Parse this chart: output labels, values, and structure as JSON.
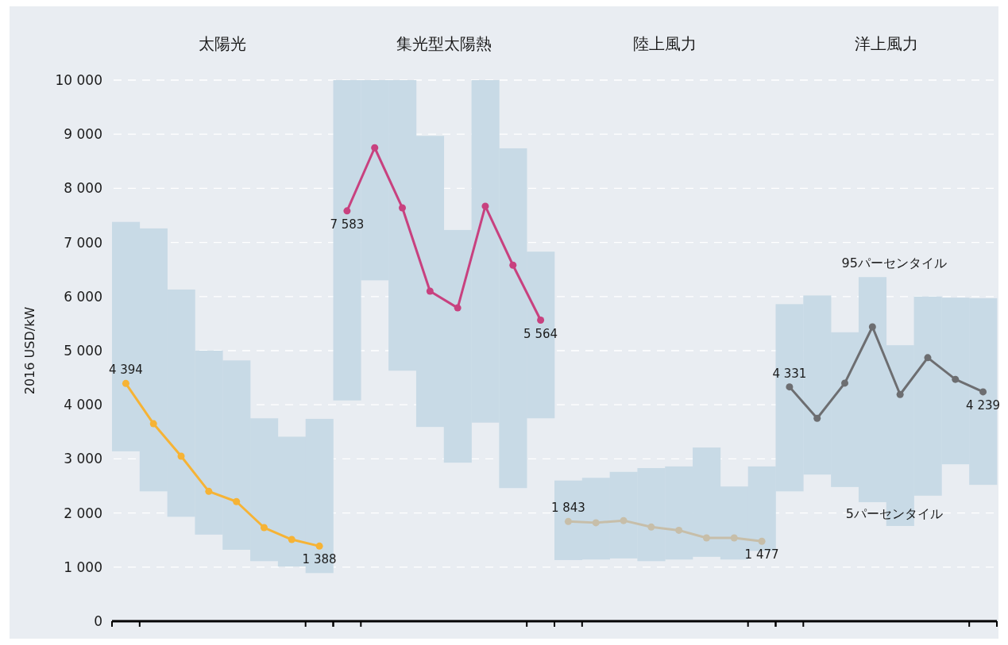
{
  "chart_data": {
    "type": "bar",
    "ylabel": "2016 USD/kW",
    "categories": [
      null,
      null,
      null,
      null,
      null,
      null,
      null,
      null,
      null,
      null,
      null,
      null,
      null,
      null,
      null,
      null,
      null,
      null,
      null,
      null,
      null,
      null,
      null,
      null,
      null,
      null,
      null,
      null,
      null,
      null,
      null,
      null
    ],
    "ylim": [
      0,
      10000
    ],
    "yticks": [
      0,
      {
        "value": 1000,
        "label": "1 000"
      },
      {
        "value": 2000,
        "label": "2 000"
      },
      {
        "value": 3000,
        "label": "3 000"
      },
      {
        "value": 4000,
        "label": "4 000"
      },
      {
        "value": 5000,
        "label": "5 000"
      },
      {
        "value": 6000,
        "label": "6 000"
      },
      {
        "value": 7000,
        "label": "7 000"
      },
      {
        "value": 8000,
        "label": "8 000"
      },
      {
        "value": 9000,
        "label": "9 000"
      },
      {
        "value": 10000,
        "label": "10 000"
      }
    ],
    "grid": "y",
    "marker": "circle",
    "annotations": [
      "太陽光",
      "集光型太陽熱",
      "陸上風力",
      "洋上風力",
      "95パーセンタイル",
      "5パーセンタイル"
    ],
    "series": [
      {
        "color": "#c8dae6",
        "base": [
          3140,
          2400,
          1930,
          1600,
          1320,
          1110,
          1010,
          890,
          4080,
          6300,
          4630,
          3590,
          2930,
          3670,
          2460,
          3750,
          1130,
          1140,
          1160,
          1110,
          1140,
          1190,
          1140,
          1300,
          2400,
          2710,
          2480,
          2200,
          1760,
          2320,
          2900,
          2520
        ],
        "values": [
          4240,
          4860,
          4200,
          3400,
          3500,
          2640,
          2400,
          2850,
          5920,
          3700,
          5370,
          5380,
          4300,
          6330,
          6280,
          3080,
          1470,
          1510,
          1600,
          1720,
          1720,
          2020,
          1350,
          1560,
          3460,
          3310,
          2860,
          4160,
          3340,
          3680,
          3080,
          3450
        ]
      },
      {
        "type": "line",
        "color": "#f6b335",
        "values": [
          4394,
          3650,
          3050,
          2400,
          2210,
          1730,
          1510,
          1388,
          null,
          null,
          null,
          null,
          null,
          null,
          null,
          null,
          null,
          null,
          null,
          null,
          null,
          null,
          null,
          null,
          null,
          null,
          null,
          null,
          null,
          null,
          null,
          null
        ],
        "value_labels": [
          "4 394",
          null,
          null,
          null,
          null,
          null,
          null,
          "1 388",
          null,
          null,
          null,
          null,
          null,
          null,
          null,
          null,
          null,
          null,
          null,
          null,
          null,
          null,
          null,
          null,
          null,
          null,
          null,
          null,
          null,
          null,
          null,
          null
        ]
      },
      {
        "type": "line",
        "color": "#c8417f",
        "values": [
          null,
          null,
          null,
          null,
          null,
          null,
          null,
          null,
          7583,
          8750,
          7640,
          6100,
          5790,
          7670,
          6580,
          5564,
          null,
          null,
          null,
          null,
          null,
          null,
          null,
          null,
          null,
          null,
          null,
          null,
          null,
          null,
          null,
          null
        ],
        "value_labels": [
          null,
          null,
          null,
          null,
          null,
          null,
          null,
          null,
          "7 583",
          null,
          null,
          null,
          null,
          null,
          null,
          "5 564",
          null,
          null,
          null,
          null,
          null,
          null,
          null,
          null,
          null,
          null,
          null,
          null,
          null,
          null,
          null,
          null
        ]
      },
      {
        "type": "line",
        "color": "#c7bea9",
        "values": [
          null,
          null,
          null,
          null,
          null,
          null,
          null,
          null,
          null,
          null,
          null,
          null,
          null,
          null,
          null,
          null,
          1843,
          1820,
          1860,
          1740,
          1680,
          1540,
          1540,
          1477,
          null,
          null,
          null,
          null,
          null,
          null,
          null,
          null
        ],
        "value_labels": [
          null,
          null,
          null,
          null,
          null,
          null,
          null,
          null,
          null,
          null,
          null,
          null,
          null,
          null,
          null,
          null,
          "1 843",
          null,
          null,
          null,
          null,
          null,
          null,
          "1 477",
          null,
          null,
          null,
          null,
          null,
          null,
          null,
          null
        ]
      },
      {
        "type": "line",
        "color": "#6d6e71",
        "values": [
          null,
          null,
          null,
          null,
          null,
          null,
          null,
          null,
          null,
          null,
          null,
          null,
          null,
          null,
          null,
          null,
          null,
          null,
          null,
          null,
          null,
          null,
          null,
          null,
          4331,
          3750,
          4400,
          5440,
          4190,
          4870,
          4470,
          4239
        ],
        "value_labels": [
          null,
          null,
          null,
          null,
          null,
          null,
          null,
          null,
          null,
          null,
          null,
          null,
          null,
          null,
          null,
          null,
          null,
          null,
          null,
          null,
          null,
          null,
          null,
          null,
          "4 331",
          null,
          null,
          null,
          null,
          null,
          null,
          "4 239"
        ]
      }
    ]
  }
}
